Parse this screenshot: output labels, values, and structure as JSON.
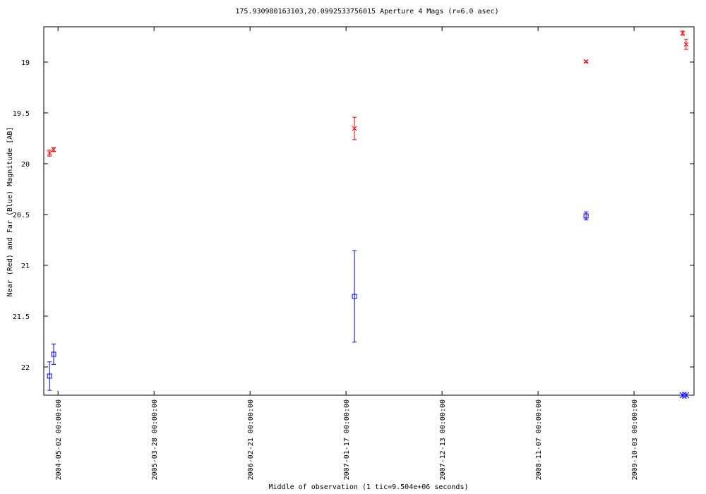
{
  "chart_data": {
    "type": "errorbar-scatter",
    "title": "175.930980163103,20.0992533756015   Aperture 4 Mags (r=6.0 asec)",
    "x_label": "Middle of observation (1 tic=9.504e+06 seconds)",
    "y_label": "Near (Red) and Far (Blue) Magnitude [AB]",
    "xlim": [
      "2004-03-14 00:00:00",
      "2010-04-27 00:00:00"
    ],
    "xticks": [
      "2004-05-02 00:00:00",
      "2005-03-28 00:00:00",
      "2006-02-21 00:00:00",
      "2007-01-17 00:00:00",
      "2007-12-13 00:00:00",
      "2008-11-07 00:00:00",
      "2009-10-03 00:00:00"
    ],
    "ylim": [
      18.653,
      22.278
    ],
    "y_inverted": true,
    "yticks": [
      19,
      19.5,
      20,
      20.5,
      21,
      21.5,
      22
    ],
    "series": [
      {
        "color": "#ff0000",
        "marker": "x",
        "x": [
          "2004-04-03",
          "2004-04-17",
          "2007-02-15",
          "2009-04-21",
          "2010-03-19",
          "2010-03-31"
        ],
        "values": [
          19.896,
          19.861,
          19.653,
          18.995,
          18.715,
          18.826
        ],
        "errors": [
          0.03,
          0.02,
          0.11,
          0.01,
          0.02,
          0.05
        ]
      },
      {
        "color": "#0000ff",
        "marker": "square",
        "x": [
          "2004-04-03",
          "2004-04-17",
          "2007-02-15",
          "2009-04-21",
          "2010-03-19",
          "2010-03-31"
        ],
        "values": [
          22.09,
          21.875,
          21.306,
          20.514,
          null,
          null
        ],
        "errors": [
          0.14,
          0.1,
          0.45,
          0.04,
          null,
          null
        ]
      }
    ]
  }
}
